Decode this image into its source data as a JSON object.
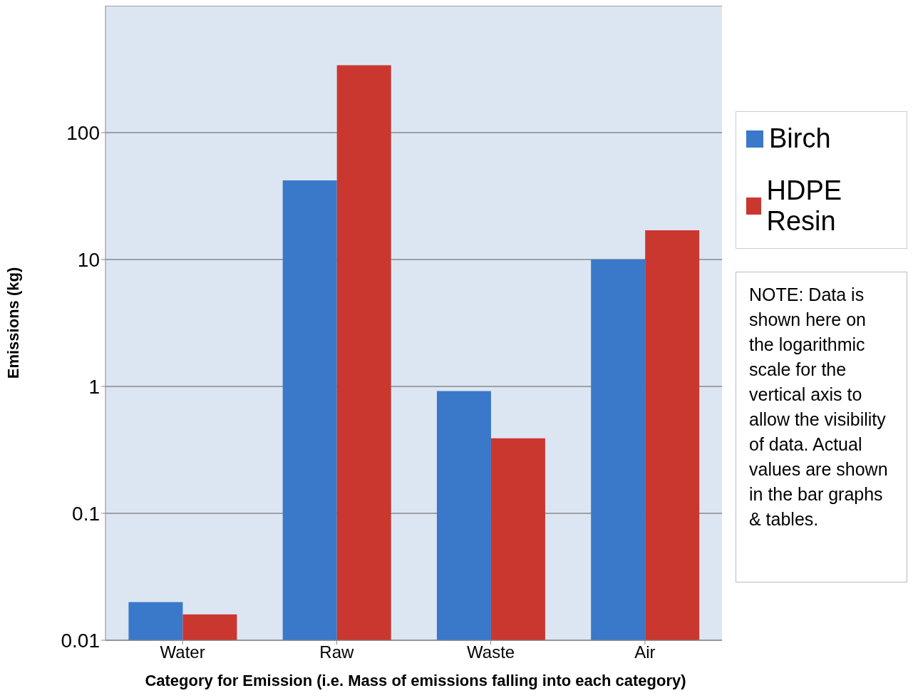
{
  "chart_data": {
    "type": "bar",
    "categories": [
      "Water",
      "Raw",
      "Waste",
      "Air"
    ],
    "series": [
      {
        "name": "Birch",
        "color": "#3a78c9",
        "values": [
          0.02,
          42,
          0.92,
          10
        ]
      },
      {
        "name": "HDPE Resin",
        "color": "#c9372f",
        "values": [
          0.016,
          340,
          0.39,
          17
        ]
      }
    ],
    "xlabel": "Category for Emission (i.e. Mass of emissions falling into each category)",
    "ylabel": "Emissions (kg)",
    "log": "y",
    "ylim": [
      0.01,
      1000
    ],
    "yticks": [
      0.01,
      0.1,
      1,
      10,
      100
    ],
    "grid": "y",
    "legend": "right",
    "annotations": [
      "NOTE: Data is shown here on the logarithmic scale for the vertical axis to allow the visibility of data. Actual values are shown in the bar graphs & tables."
    ]
  }
}
